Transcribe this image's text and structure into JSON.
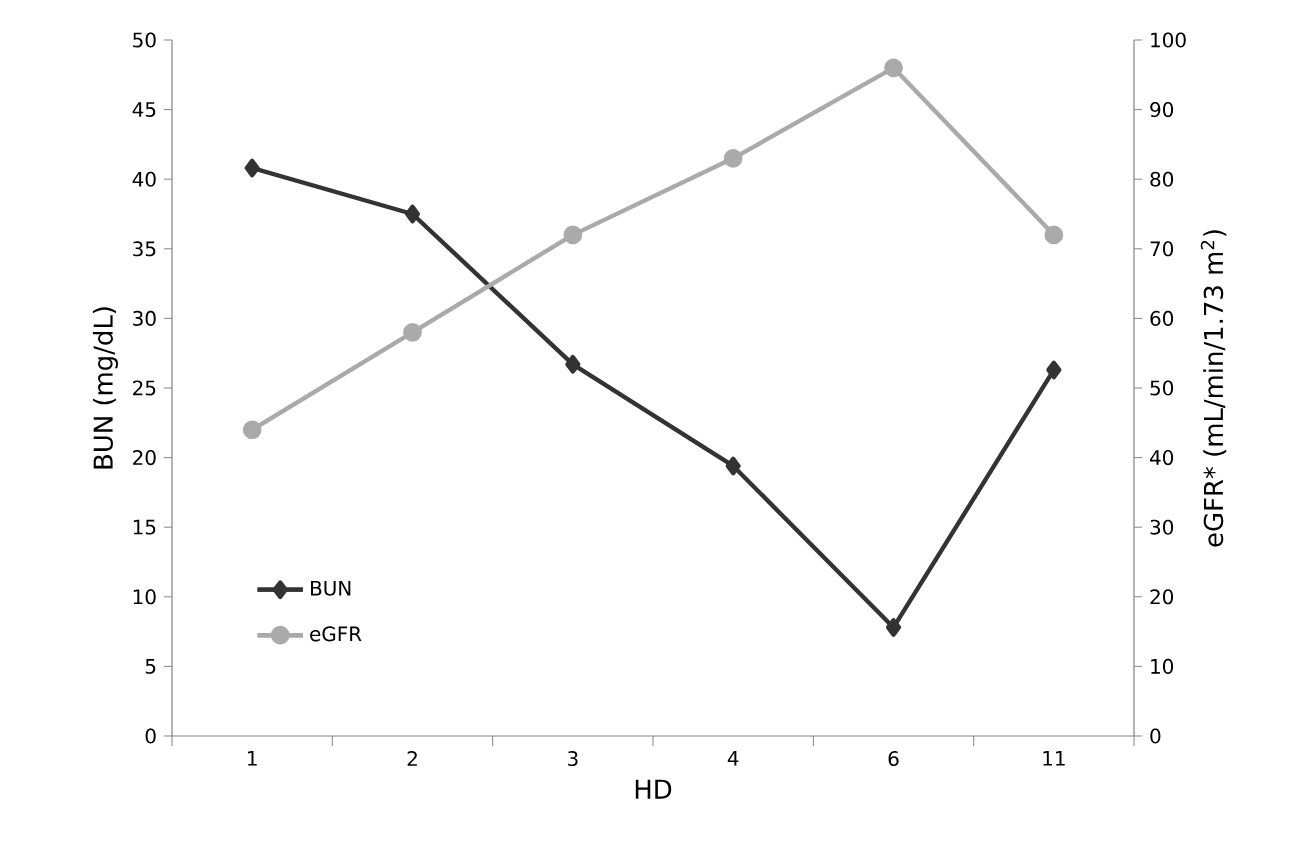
{
  "chart_data": {
    "type": "line",
    "xlabel": "HD",
    "ylabel": "BUN (mg/dL)",
    "y2label": "eGFR* (mL/min/1.73 m$^{2}$)",
    "categories": [
      "1",
      "2",
      "3",
      "4",
      "6",
      "11"
    ],
    "series": [
      {
        "name": "BUN",
        "color": "#333333",
        "marker": "diamond",
        "values": [
          40.8,
          37.5,
          26.7,
          19.4,
          7.8,
          26.3
        ]
      },
      {
        "name": "eGFR",
        "color": "#aaaaaa",
        "marker": "circle",
        "axis": "y2",
        "values": [
          44,
          58,
          72,
          83,
          96,
          72
        ]
      }
    ],
    "ylim": [
      0,
      50
    ],
    "yticks": [
      0,
      5,
      10,
      15,
      20,
      25,
      30,
      35,
      40,
      45,
      50
    ],
    "y2lim": [
      0,
      100
    ],
    "y2ticks": [
      0,
      10,
      20,
      30,
      40,
      50,
      60,
      70,
      80,
      90,
      100
    ],
    "legend": "bottom left",
    "line_style": "solid",
    "grid": false
  }
}
